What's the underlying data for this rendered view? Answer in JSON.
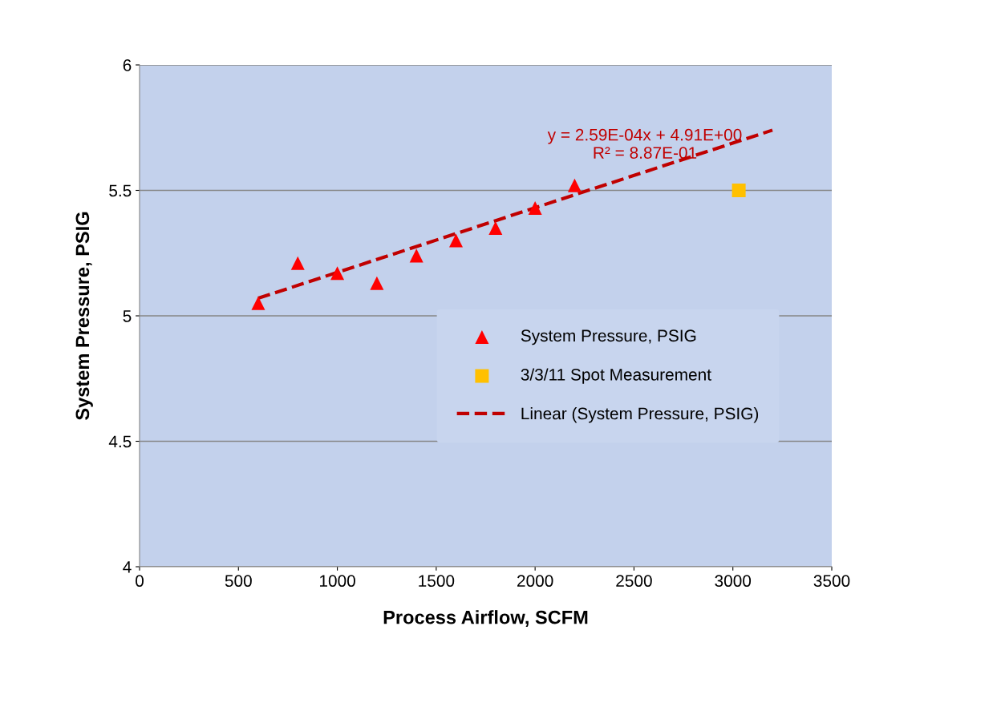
{
  "chart_data": {
    "type": "scatter",
    "xlabel": "Process Airflow, SCFM",
    "ylabel": "System Pressure, PSIG",
    "xlim": [
      0,
      3500
    ],
    "xticks": [
      0,
      500,
      1000,
      1500,
      2000,
      2500,
      3000,
      3500
    ],
    "ylim": [
      4,
      6
    ],
    "yticks": [
      4,
      4.5,
      5,
      5.5,
      6
    ],
    "grid": "y",
    "legend": "center right",
    "series": [
      {
        "name": "System Pressure, PSIG",
        "color": "#ff0000",
        "marker": "triangle",
        "x": [
          600,
          800,
          1000,
          1200,
          1400,
          1600,
          1800,
          2000,
          2200
        ],
        "values": [
          5.05,
          5.21,
          5.17,
          5.13,
          5.24,
          5.3,
          5.35,
          5.43,
          5.52
        ]
      },
      {
        "name": "3/3/11 Spot Measurement",
        "color": "#ffc000",
        "marker": "square",
        "x": [
          3030
        ],
        "values": [
          5.5
        ]
      },
      {
        "name": "Linear (System Pressure, PSIG)",
        "type": "line",
        "color": "#c00000",
        "line_style": "dashed",
        "marker": "none",
        "x": [
          600,
          3200
        ],
        "values": [
          5.07,
          5.74
        ]
      }
    ],
    "annotations": [
      "y = 2.59E-04x + 4.91E+00\nR² = 8.87E-01"
    ]
  }
}
